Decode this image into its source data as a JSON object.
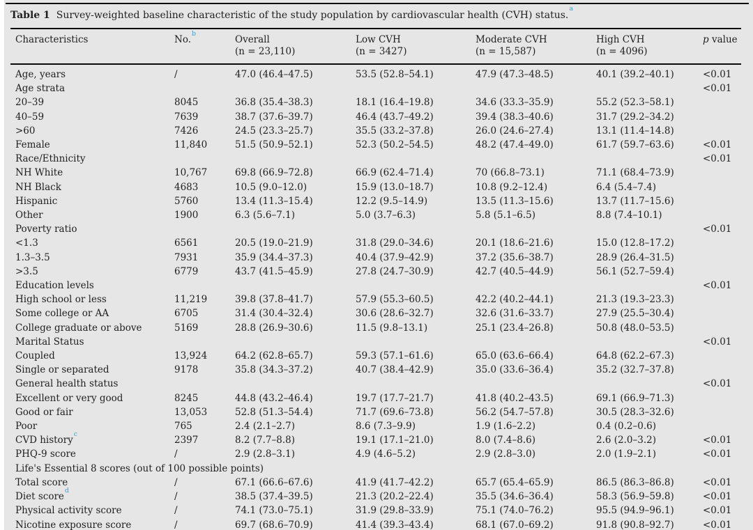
{
  "colors": {
    "background": "#e6e6e6",
    "footnote_marker": "#3f9fca",
    "rule": "#0a0a0a"
  },
  "caption": {
    "label": "Table 1",
    "text": "Survey-weighted baseline characteristic of the study population by cardiovascular health (CVH) status.",
    "sup": "a"
  },
  "table": {
    "columns": [
      {
        "label": "Characteristics"
      },
      {
        "label": "No.",
        "sup": "b"
      },
      {
        "label": "Overall",
        "sub": "(n = 23,110)"
      },
      {
        "label": "Low CVH",
        "sub": "(n = 3427)"
      },
      {
        "label": "Moderate CVH",
        "sub": "(n = 15,587)"
      },
      {
        "label": "High CVH",
        "sub": "(n = 4096)"
      },
      {
        "italic": "p",
        "rest": " value"
      }
    ],
    "rows": [
      {
        "label": "Age, years",
        "no": "/",
        "overall": "47.0 (46.4–47.5)",
        "low": "53.5 (52.8–54.1)",
        "moderate": "47.9 (47.3–48.5)",
        "high": "40.1 (39.2–40.1)",
        "p": "<0.01"
      },
      {
        "label": "Age strata",
        "no": "",
        "overall": "",
        "low": "",
        "moderate": "",
        "high": "",
        "p": "<0.01"
      },
      {
        "label": "20–39",
        "no": "8045",
        "overall": "36.8 (35.4–38.3)",
        "low": "18.1 (16.4–19.8)",
        "moderate": "34.6 (33.3–35.9)",
        "high": "55.2 (52.3–58.1)",
        "p": ""
      },
      {
        "label": "40–59",
        "no": "7639",
        "overall": "38.7 (37.6–39.7)",
        "low": "46.4 (43.7–49.2)",
        "moderate": "39.4 (38.3–40.6)",
        "high": "31.7 (29.2–34.2)",
        "p": ""
      },
      {
        "label": ">60",
        "no": "7426",
        "overall": "24.5 (23.3–25.7)",
        "low": "35.5 (33.2–37.8)",
        "moderate": "26.0 (24.6–27.4)",
        "high": "13.1 (11.4–14.8)",
        "p": ""
      },
      {
        "label": "Female",
        "no": "11,840",
        "overall": "51.5 (50.9–52.1)",
        "low": "52.3 (50.2–54.5)",
        "moderate": "48.2 (47.4–49.0)",
        "high": "61.7 (59.7–63.6)",
        "p": "<0.01"
      },
      {
        "label": "Race/Ethnicity",
        "no": "",
        "overall": "",
        "low": "",
        "moderate": "",
        "high": "",
        "p": "<0.01"
      },
      {
        "label": "NH White",
        "no": "10,767",
        "overall": "69.8 (66.9–72.8)",
        "low": "66.9 (62.4–71.4)",
        "moderate": "70 (66.8–73.1)",
        "high": "71.1 (68.4–73.9)",
        "p": ""
      },
      {
        "label": "NH Black",
        "no": "4683",
        "overall": "10.5 (9.0–12.0)",
        "low": "15.9 (13.0–18.7)",
        "moderate": "10.8 (9.2–12.4)",
        "high": "6.4 (5.4–7.4)",
        "p": ""
      },
      {
        "label": "Hispanic",
        "no": "5760",
        "overall": "13.4 (11.3–15.4)",
        "low": "12.2 (9.5–14.9)",
        "moderate": "13.5 (11.3–15.6)",
        "high": "13.7 (11.7–15.6)",
        "p": ""
      },
      {
        "label": "Other",
        "no": "1900",
        "overall": "6.3 (5.6–7.1)",
        "low": "5.0 (3.7–6.3)",
        "moderate": "5.8 (5.1–6.5)",
        "high": "8.8 (7.4–10.1)",
        "p": ""
      },
      {
        "label": "Poverty ratio",
        "no": "",
        "overall": "",
        "low": "",
        "moderate": "",
        "high": "",
        "p": "<0.01"
      },
      {
        "label": "<1.3",
        "no": "6561",
        "overall": "20.5 (19.0–21.9)",
        "low": "31.8 (29.0–34.6)",
        "moderate": "20.1 (18.6–21.6)",
        "high": "15.0 (12.8–17.2)",
        "p": ""
      },
      {
        "label": "1.3–3.5",
        "no": "7931",
        "overall": "35.9 (34.4–37.3)",
        "low": "40.4 (37.9–42.9)",
        "moderate": "37.2 (35.6–38.7)",
        "high": "28.9 (26.4–31.5)",
        "p": ""
      },
      {
        "label": ">3.5",
        "no": "6779",
        "overall": "43.7 (41.5–45.9)",
        "low": "27.8 (24.7–30.9)",
        "moderate": "42.7 (40.5–44.9)",
        "high": "56.1 (52.7–59.4)",
        "p": ""
      },
      {
        "label": "Education levels",
        "no": "",
        "overall": "",
        "low": "",
        "moderate": "",
        "high": "",
        "p": "<0.01"
      },
      {
        "label": "High school or less",
        "no": "11,219",
        "overall": "39.8 (37.8–41.7)",
        "low": "57.9 (55.3–60.5)",
        "moderate": "42.2 (40.2–44.1)",
        "high": "21.3 (19.3–23.3)",
        "p": ""
      },
      {
        "label": "Some college or AA",
        "no": "6705",
        "overall": "31.4 (30.4–32.4)",
        "low": "30.6 (28.6–32.7)",
        "moderate": "32.6 (31.6–33.7)",
        "high": "27.9 (25.5–30.4)",
        "p": ""
      },
      {
        "label": "College graduate or above",
        "no": "5169",
        "overall": "28.8 (26.9–30.6)",
        "low": "11.5 (9.8–13.1)",
        "moderate": "25.1 (23.4–26.8)",
        "high": "50.8 (48.0–53.5)",
        "p": ""
      },
      {
        "label": "Marital Status",
        "no": "",
        "overall": "",
        "low": "",
        "moderate": "",
        "high": "",
        "p": "<0.01"
      },
      {
        "label": "Coupled",
        "no": "13,924",
        "overall": "64.2 (62.8–65.7)",
        "low": "59.3 (57.1–61.6)",
        "moderate": "65.0 (63.6–66.4)",
        "high": "64.8 (62.2–67.3)",
        "p": ""
      },
      {
        "label": "Single or separated",
        "no": "9178",
        "overall": "35.8 (34.3–37.2)",
        "low": "40.7 (38.4–42.9)",
        "moderate": "35.0 (33.6–36.4)",
        "high": "35.2 (32.7–37.8)",
        "p": ""
      },
      {
        "label": "General health status",
        "no": "",
        "overall": "",
        "low": "",
        "moderate": "",
        "high": "",
        "p": "<0.01"
      },
      {
        "label": "Excellent or very good",
        "no": "8245",
        "overall": "44.8 (43.2–46.4)",
        "low": "19.7 (17.7–21.7)",
        "moderate": "41.8 (40.2–43.5)",
        "high": "69.1 (66.9–71.3)",
        "p": ""
      },
      {
        "label": "Good or fair",
        "no": "13,053",
        "overall": "52.8 (51.3–54.4)",
        "low": "71.7 (69.6–73.8)",
        "moderate": "56.2 (54.7–57.8)",
        "high": "30.5 (28.3–32.6)",
        "p": ""
      },
      {
        "label": "Poor",
        "no": "765",
        "overall": "2.4 (2.1–2.7)",
        "low": "8.6 (7.3–9.9)",
        "moderate": "1.9 (1.6–2.2)",
        "high": "0.4 (0.2–0.6)",
        "p": ""
      },
      {
        "label": "CVD history",
        "sup": "c",
        "no": "2397",
        "overall": "8.2 (7.7–8.8)",
        "low": "19.1 (17.1–21.0)",
        "moderate": "8.0 (7.4–8.6)",
        "high": "2.6 (2.0–3.2)",
        "p": "<0.01"
      },
      {
        "label": "PHQ-9 score",
        "no": "/",
        "overall": "2.9 (2.8–3.1)",
        "low": "4.9 (4.6–5.2)",
        "moderate": "2.9 (2.8–3.0)",
        "high": "2.0 (1.9–2.1)",
        "p": "<0.01"
      },
      {
        "label": "Life's Essential 8 scores (out of 100 possible points)",
        "section": true
      },
      {
        "label": "Total score",
        "no": "/",
        "overall": "67.1 (66.6–67.6)",
        "low": "41.9 (41.7–42.2)",
        "moderate": "65.7 (65.4–65.9)",
        "high": "86.5 (86.3–86.8)",
        "p": "<0.01"
      },
      {
        "label": "Diet score",
        "sup": "d",
        "no": "/",
        "overall": "38.5 (37.4–39.5)",
        "low": "21.3 (20.2–22.4)",
        "moderate": "35.5 (34.6–36.4)",
        "high": "58.3 (56.9–59.8)",
        "p": "<0.01"
      },
      {
        "label": "Physical activity score",
        "no": "/",
        "overall": "74.1 (73.0–75.1)",
        "low": "31.9 (29.8–33.9)",
        "moderate": "75.1 (74.0–76.2)",
        "high": "95.5 (94.9–96.1)",
        "p": "<0.01"
      },
      {
        "label": "Nicotine exposure score",
        "no": "/",
        "overall": "69.7 (68.6–70.9)",
        "low": "41.4 (39.3–43.4)",
        "moderate": "68.1 (67.0–69.2)",
        "high": "91.8 (90.8–92.7)",
        "p": "<0.01"
      }
    ]
  }
}
